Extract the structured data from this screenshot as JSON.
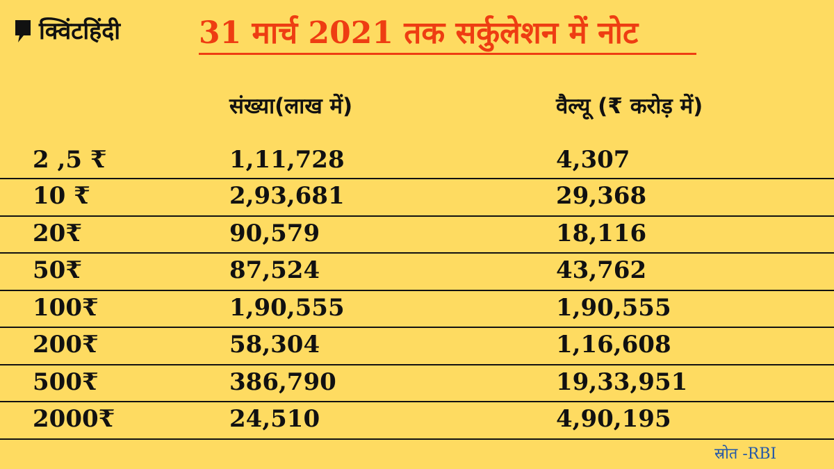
{
  "brand": {
    "logo_text": "क्विंटहिंदी"
  },
  "title": "31 मार्च 2021 तक सर्कुलेशन में नोट",
  "colors": {
    "background": "#fedb61",
    "title": "#ee3d12",
    "source": "#2458a8",
    "text": "#111111"
  },
  "chart_data": {
    "type": "table",
    "title": "31 मार्च 2021 तक सर्कुलेशन में नोट",
    "columns": [
      "",
      "संख्या(लाख में)",
      "वैल्यू (₹ करोड़ में)"
    ],
    "rows": [
      {
        "denomination": "2 ,5 ₹",
        "count": "1,11,728",
        "value": "4,307"
      },
      {
        "denomination": "10 ₹",
        "count": "2,93,681",
        "value": "29,368"
      },
      {
        "denomination": "20₹",
        "count": "90,579",
        "value": "18,116"
      },
      {
        "denomination": "50₹",
        "count": "87,524",
        "value": "43,762"
      },
      {
        "denomination": "100₹",
        "count": "1,90,555",
        "value": "1,90,555"
      },
      {
        "denomination": "200₹",
        "count": "58,304",
        "value": "1,16,608"
      },
      {
        "denomination": "500₹",
        "count": "386,790",
        "value": "19,33,951"
      },
      {
        "denomination": "2000₹",
        "count": "24,510",
        "value": "4,90,195"
      }
    ],
    "source": "स्रोत -RBI"
  }
}
